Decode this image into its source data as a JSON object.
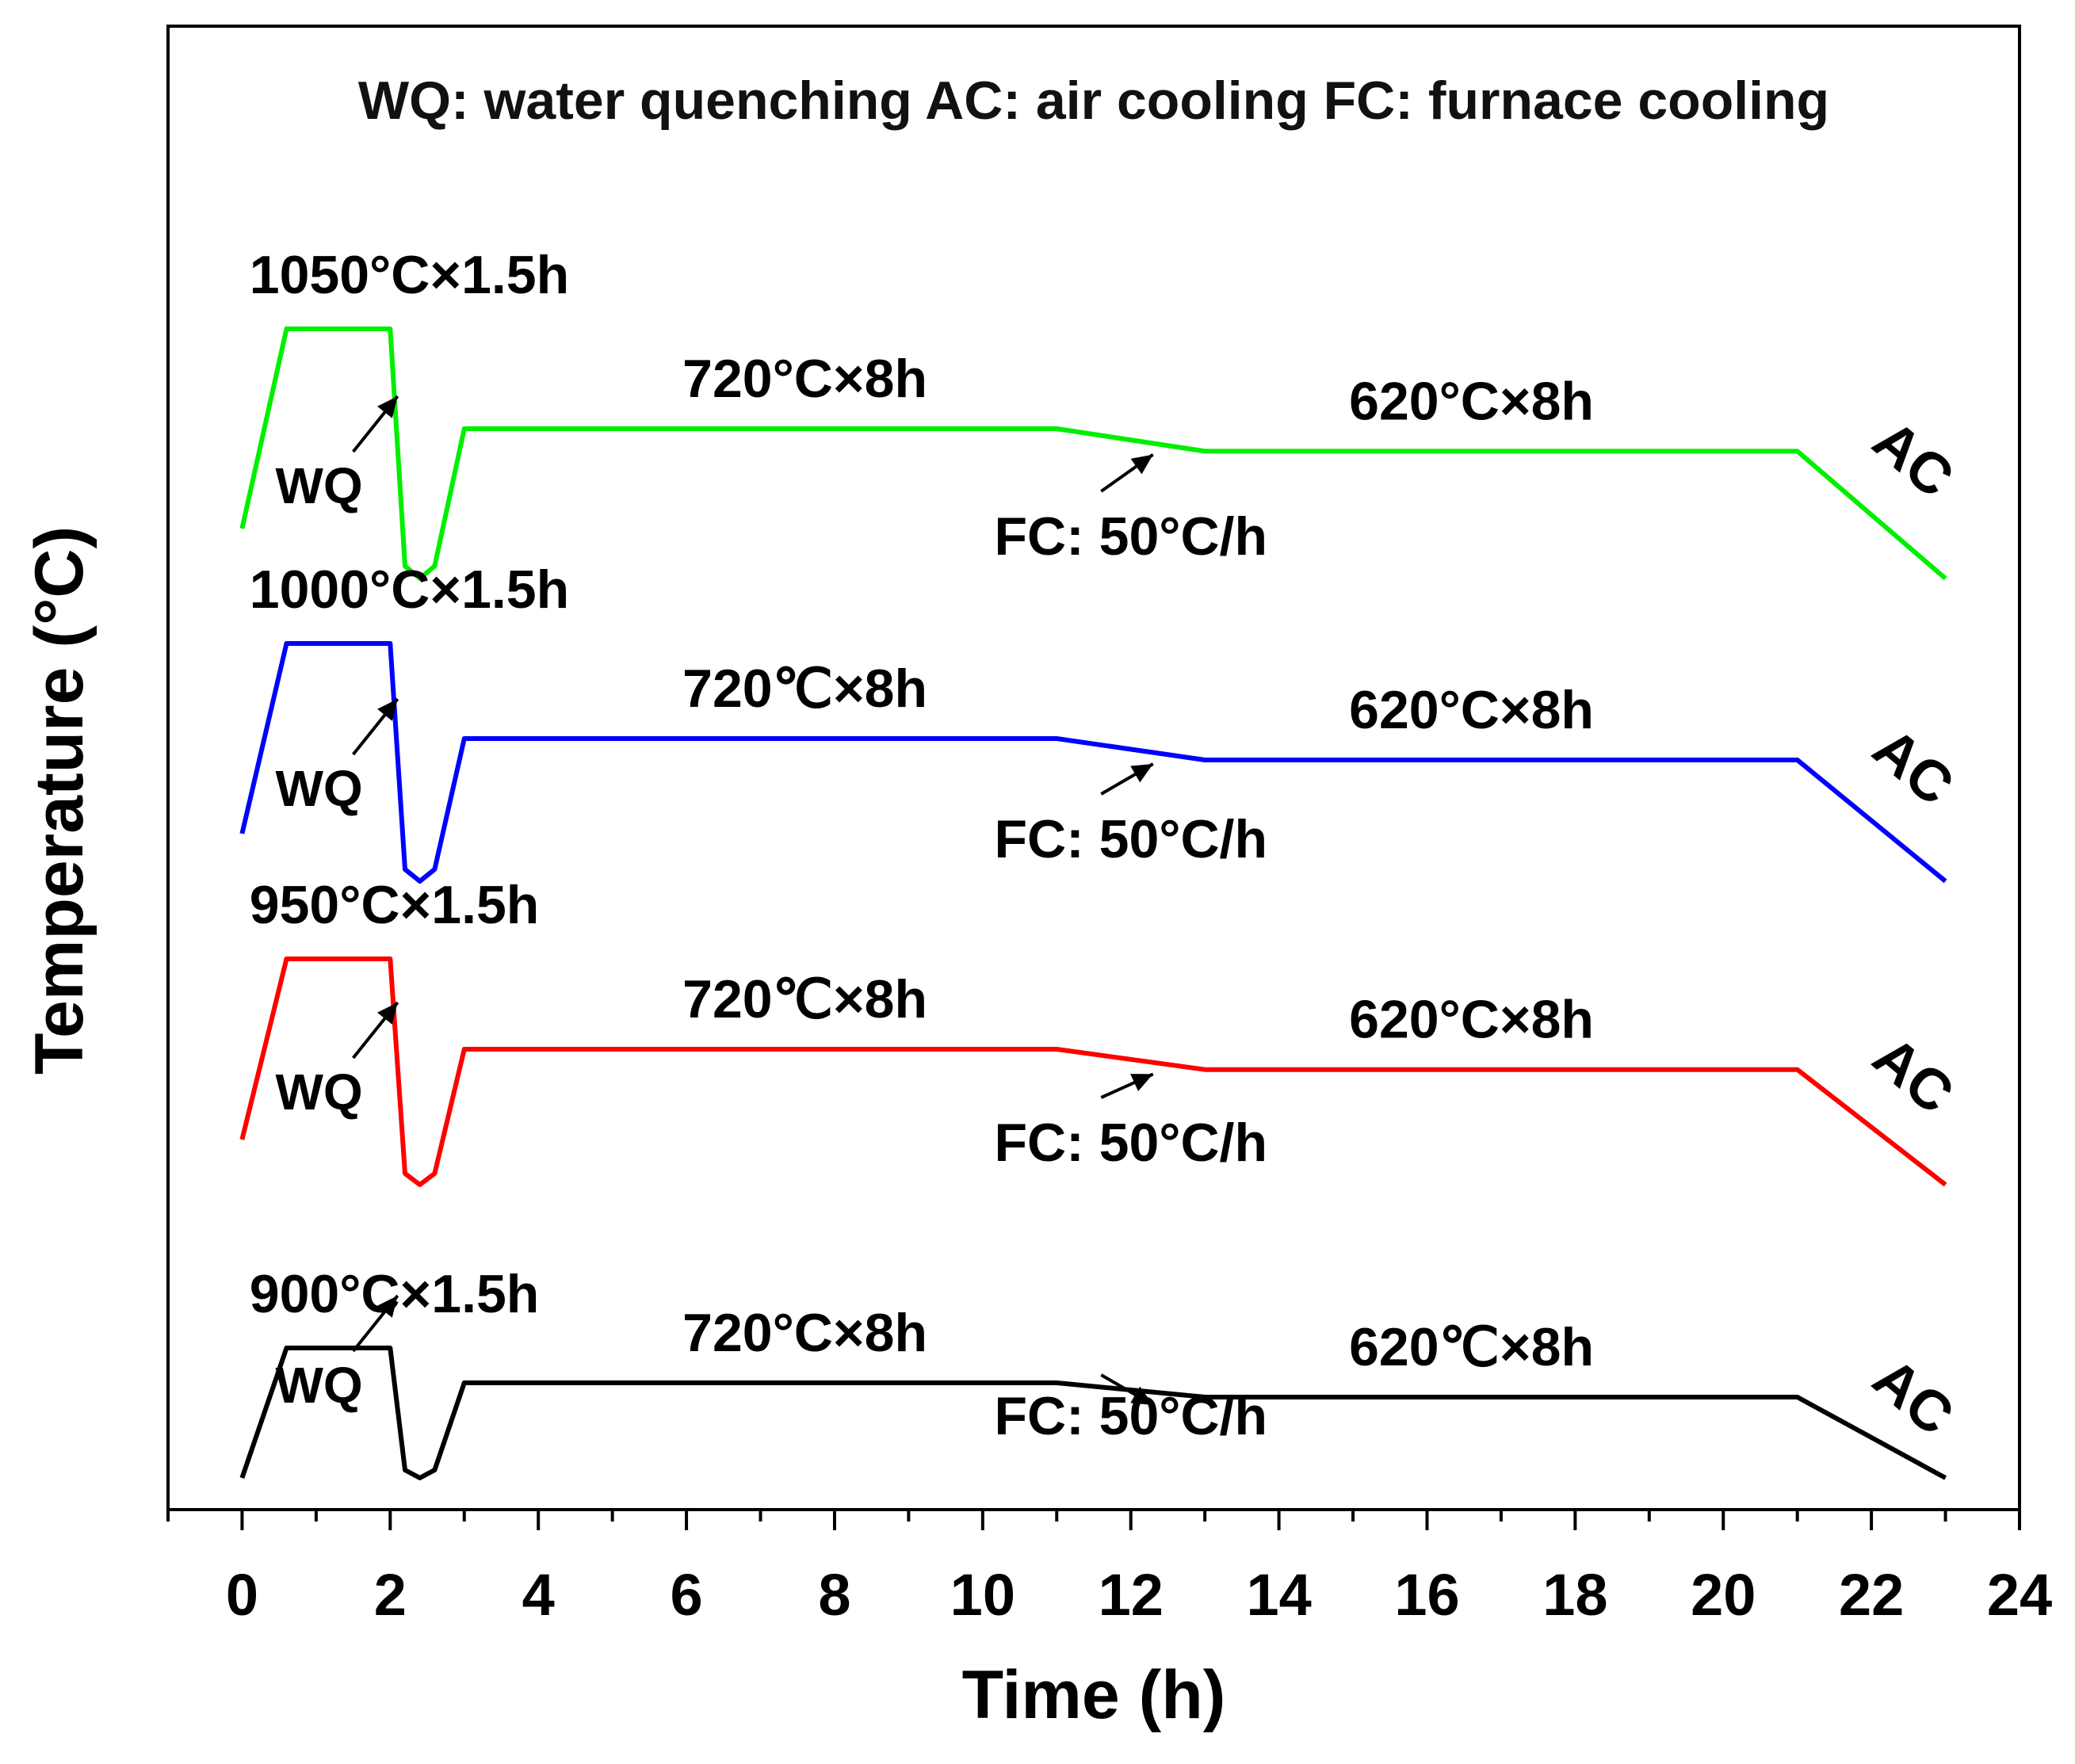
{
  "chart_data": {
    "type": "line",
    "legend_note": "WQ: water quenching  AC: air cooling  FC: furnace cooling",
    "xlabel": "Time (h)",
    "ylabel": "Temperature (°C)",
    "xlim": [
      -1,
      24
    ],
    "xticks": [
      "0",
      "2",
      "4",
      "6",
      "8",
      "10",
      "12",
      "14",
      "16",
      "18",
      "20",
      "22",
      "24"
    ],
    "grid": false,
    "series": [
      {
        "color": "#00ee00",
        "points": [
          [
            0,
            0.2
          ],
          [
            0.6,
            1.0
          ],
          [
            2.0,
            1.0
          ],
          [
            2.2,
            0.05
          ],
          [
            2.4,
            0.0
          ],
          [
            2.6,
            0.05
          ],
          [
            3.0,
            0.6
          ],
          [
            11.0,
            0.6
          ],
          [
            13.0,
            0.51
          ],
          [
            21.0,
            0.51
          ],
          [
            23.0,
            0.0
          ]
        ],
        "labels": {
          "austenitize": "1050°C×1.5h",
          "quench": "WQ",
          "temper1": "720°C×8h",
          "furnace": "FC: 50°C/h",
          "temper2": "620°C×8h",
          "air": "AC"
        }
      },
      {
        "color": "#0000ff",
        "points": [
          [
            0,
            0.2
          ],
          [
            0.6,
            1.0
          ],
          [
            2.0,
            1.0
          ],
          [
            2.2,
            0.05
          ],
          [
            2.4,
            0.0
          ],
          [
            2.6,
            0.05
          ],
          [
            3.0,
            0.6
          ],
          [
            11.0,
            0.6
          ],
          [
            13.0,
            0.51
          ],
          [
            21.0,
            0.51
          ],
          [
            23.0,
            0.0
          ]
        ],
        "labels": {
          "austenitize": "1000°C×1.5h",
          "quench": "WQ",
          "temper1": "720℃×8h",
          "furnace": "FC: 50°C/h",
          "temper2": "620°C×8h",
          "air": "AC"
        }
      },
      {
        "color": "#ff0000",
        "points": [
          [
            0,
            0.2
          ],
          [
            0.6,
            1.0
          ],
          [
            2.0,
            1.0
          ],
          [
            2.2,
            0.05
          ],
          [
            2.4,
            0.0
          ],
          [
            2.6,
            0.05
          ],
          [
            3.0,
            0.6
          ],
          [
            11.0,
            0.6
          ],
          [
            13.0,
            0.51
          ],
          [
            21.0,
            0.51
          ],
          [
            23.0,
            0.0
          ]
        ],
        "labels": {
          "austenitize": "950°C×1.5h",
          "quench": "WQ",
          "temper1": "720℃×8h",
          "furnace": "FC: 50°C/h",
          "temper2": "620°C×8h",
          "air": "AC"
        }
      },
      {
        "color": "#000000",
        "points": [
          [
            0,
            0.0
          ],
          [
            0.6,
            0.82
          ],
          [
            2.0,
            0.82
          ],
          [
            2.2,
            0.05
          ],
          [
            2.4,
            0.0
          ],
          [
            2.6,
            0.05
          ],
          [
            3.0,
            0.6
          ],
          [
            11.0,
            0.6
          ],
          [
            13.0,
            0.51
          ],
          [
            21.0,
            0.51
          ],
          [
            23.0,
            0.0
          ]
        ],
        "labels": {
          "austenitize": "900°C×1.5h",
          "quench": "WQ",
          "temper1": "720°C×8h",
          "furnace": "FC: 50°C/h",
          "temper2": "620℃×8h",
          "air": "AC"
        }
      }
    ]
  }
}
